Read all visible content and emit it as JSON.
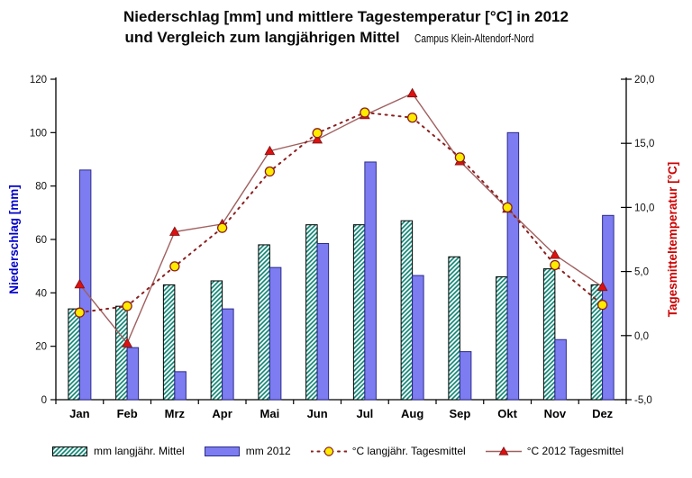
{
  "title": {
    "line1": "Niederschlag [mm] und mittlere Tagestemperatur [°C] in 2012",
    "line2": "und Vergleich zum langjährigen Mittel",
    "annotation": "Campus Klein-Altendorf-Nord"
  },
  "y_left": {
    "label": "Niederschlag [mm]",
    "tick_values": [
      0,
      20,
      40,
      60,
      80,
      100,
      120
    ],
    "tick_labels": [
      "0",
      "20",
      "40",
      "60",
      "80",
      "100",
      "120"
    ]
  },
  "y_right": {
    "label": "Tagesmitteltemperatur [°C]",
    "tick_values": [
      -5,
      0,
      5,
      10,
      15,
      20
    ],
    "tick_labels": [
      "-5,0",
      "0,0",
      "5,0",
      "10,0",
      "15,0",
      "20,0"
    ]
  },
  "chart_data": {
    "type": "combo-bar-line",
    "categories": [
      "Jan",
      "Feb",
      "Mrz",
      "Apr",
      "Mai",
      "Jun",
      "Jul",
      "Aug",
      "Sep",
      "Okt",
      "Nov",
      "Dez"
    ],
    "series": [
      {
        "name": "mm langjähr. Mittel",
        "type": "bar",
        "axis": "left",
        "style": "hatched",
        "values": [
          34,
          35,
          43,
          44.5,
          58,
          65.5,
          65.5,
          67,
          53.5,
          46,
          49,
          43
        ]
      },
      {
        "name": "mm 2012",
        "type": "bar",
        "axis": "left",
        "style": "solid-blue",
        "values": [
          86,
          19.5,
          10.5,
          34,
          49.5,
          58.5,
          89,
          46.5,
          18,
          100,
          22.5,
          69
        ]
      },
      {
        "name": "°C langjähr. Tagesmittel",
        "type": "line",
        "axis": "right",
        "style": "dashed-yellow-circles",
        "values": [
          1.8,
          2.3,
          5.4,
          8.4,
          12.8,
          15.8,
          17.4,
          17.0,
          13.9,
          10.0,
          5.5,
          2.4
        ]
      },
      {
        "name": "°C 2012 Tagesmittel",
        "type": "line",
        "axis": "right",
        "style": "solid-red-triangles",
        "values": [
          4.0,
          -0.6,
          8.1,
          8.7,
          14.4,
          15.3,
          17.2,
          18.9,
          13.6,
          9.9,
          6.3,
          3.8
        ]
      }
    ],
    "ylim_left": [
      0,
      120
    ],
    "ylim_right": [
      -5,
      20
    ],
    "grid": false,
    "legend_position": "bottom"
  },
  "colors": {
    "bar_2012_fill": "#7d7df1",
    "bar_2012_border": "#2b2b8a",
    "hatch_stripe": "#0c8273",
    "hatch_bg": "#f2fdf9",
    "hatch_border": "#000000",
    "line_2012": "#a05f5f",
    "marker_2012_fill": "#dd1111",
    "marker_2012_border": "#7a1010",
    "line_langjaehr": "#8b2020",
    "marker_langjaehr_fill": "#ffeb00",
    "marker_langjaehr_border": "#8b2020",
    "axis_left_label_color": "#0000cc",
    "axis_right_label_color": "#cc0000",
    "axis_line_color": "#000000"
  }
}
